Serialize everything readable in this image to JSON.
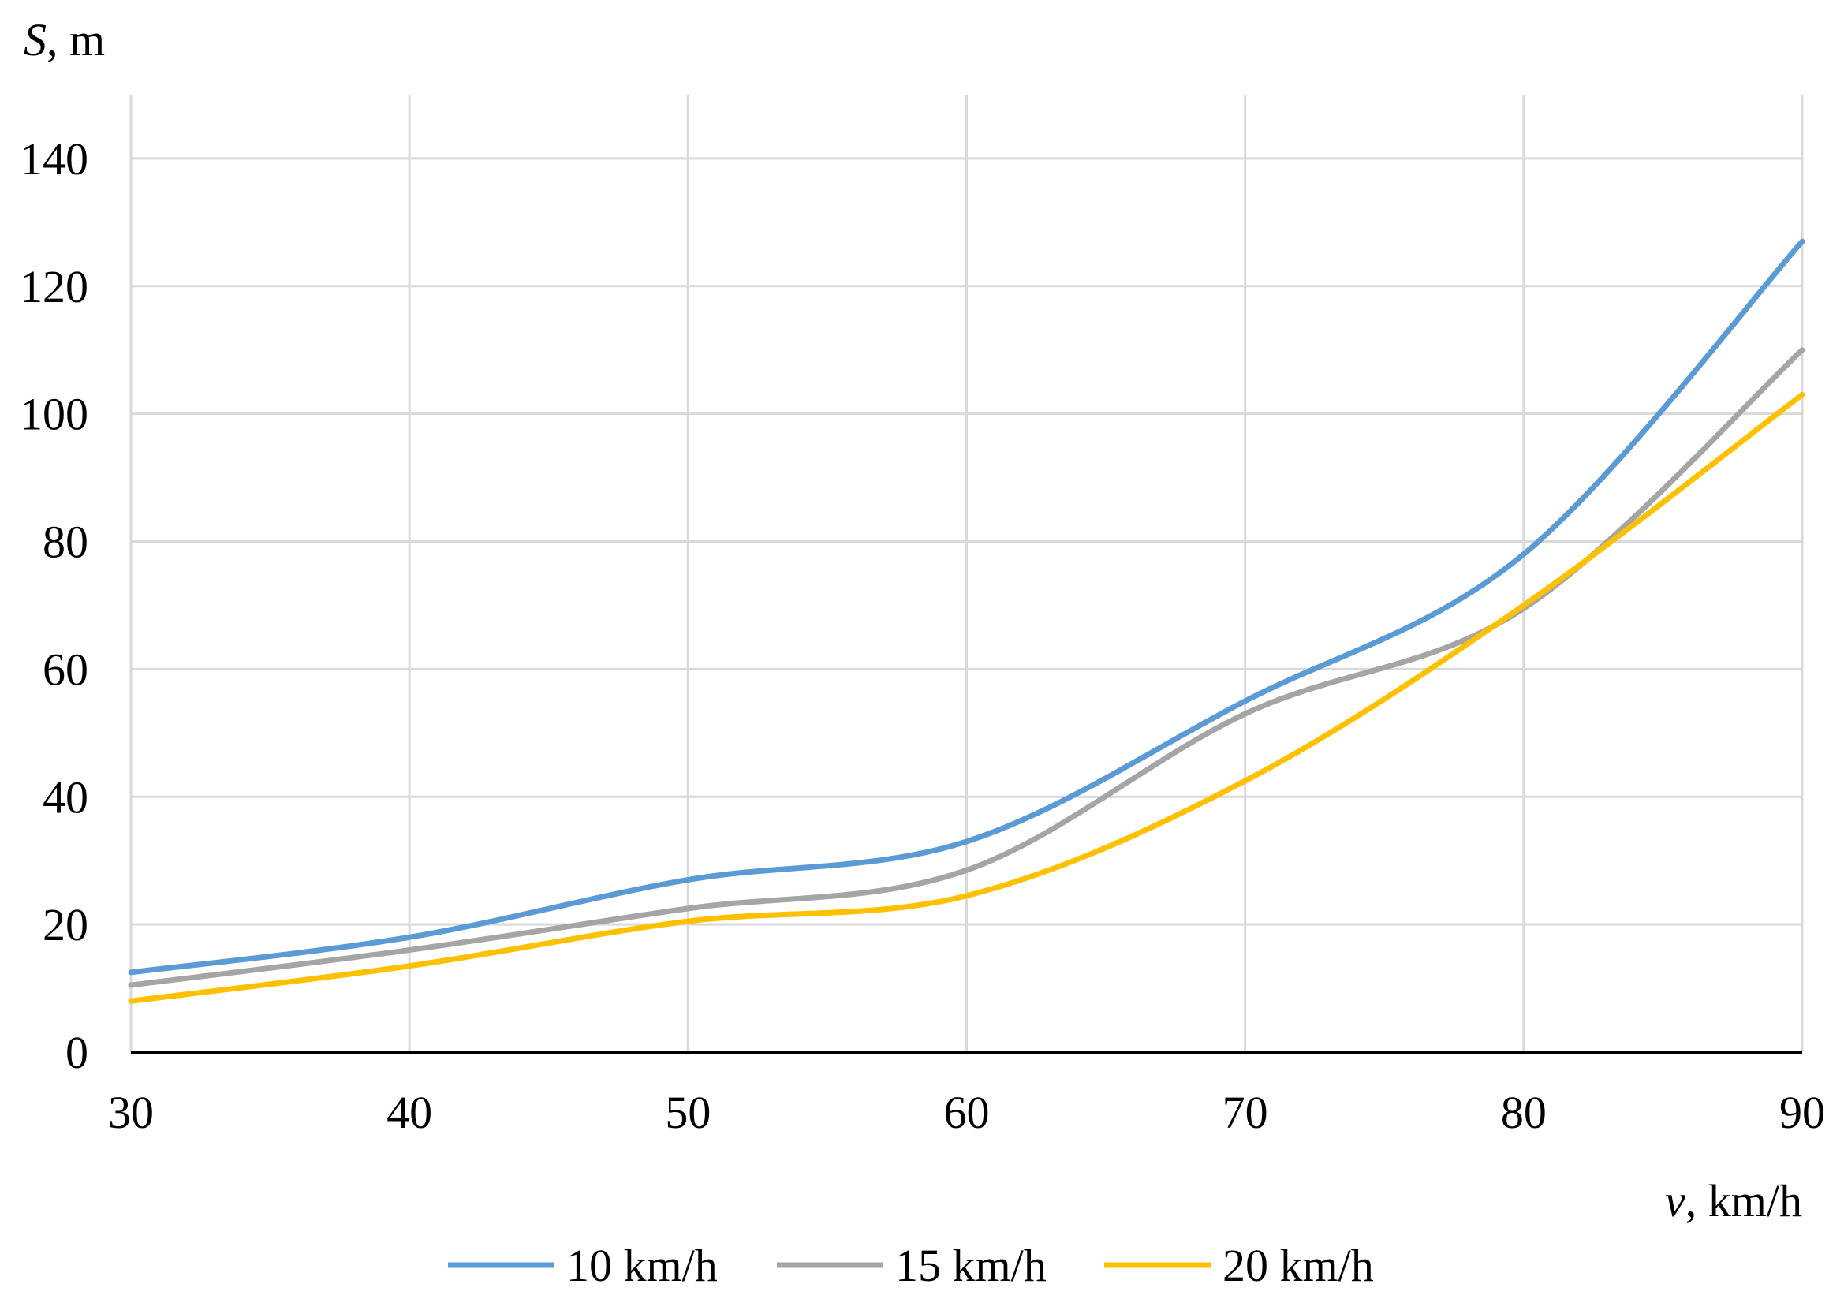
{
  "chart_data": {
    "type": "line",
    "title": "",
    "ylabel": {
      "italic": "S",
      "rest": ", m"
    },
    "xlabel": {
      "italic": "v",
      "rest": ", km/h"
    },
    "x": [
      30,
      40,
      50,
      60,
      70,
      80,
      90
    ],
    "xlim": [
      30,
      90
    ],
    "ylim": [
      0,
      150
    ],
    "x_ticks": [
      "30",
      "40",
      "50",
      "60",
      "70",
      "80",
      "90"
    ],
    "y_ticks": [
      "0",
      "20",
      "40",
      "60",
      "80",
      "100",
      "120",
      "140"
    ],
    "grid": true,
    "legend_position": "bottom",
    "series": [
      {
        "name": "10 km/h",
        "color": "#5B9BD5",
        "values": [
          12.5,
          18,
          27,
          33,
          55,
          78,
          127
        ]
      },
      {
        "name": "15 km/h",
        "color": "#A5A5A5",
        "values": [
          10.5,
          16,
          22.5,
          28.5,
          53,
          69.5,
          110
        ]
      },
      {
        "name": "20 km/h",
        "color": "#FFC000",
        "values": [
          8,
          13.5,
          20.5,
          24.5,
          42.5,
          70,
          103
        ]
      }
    ]
  }
}
